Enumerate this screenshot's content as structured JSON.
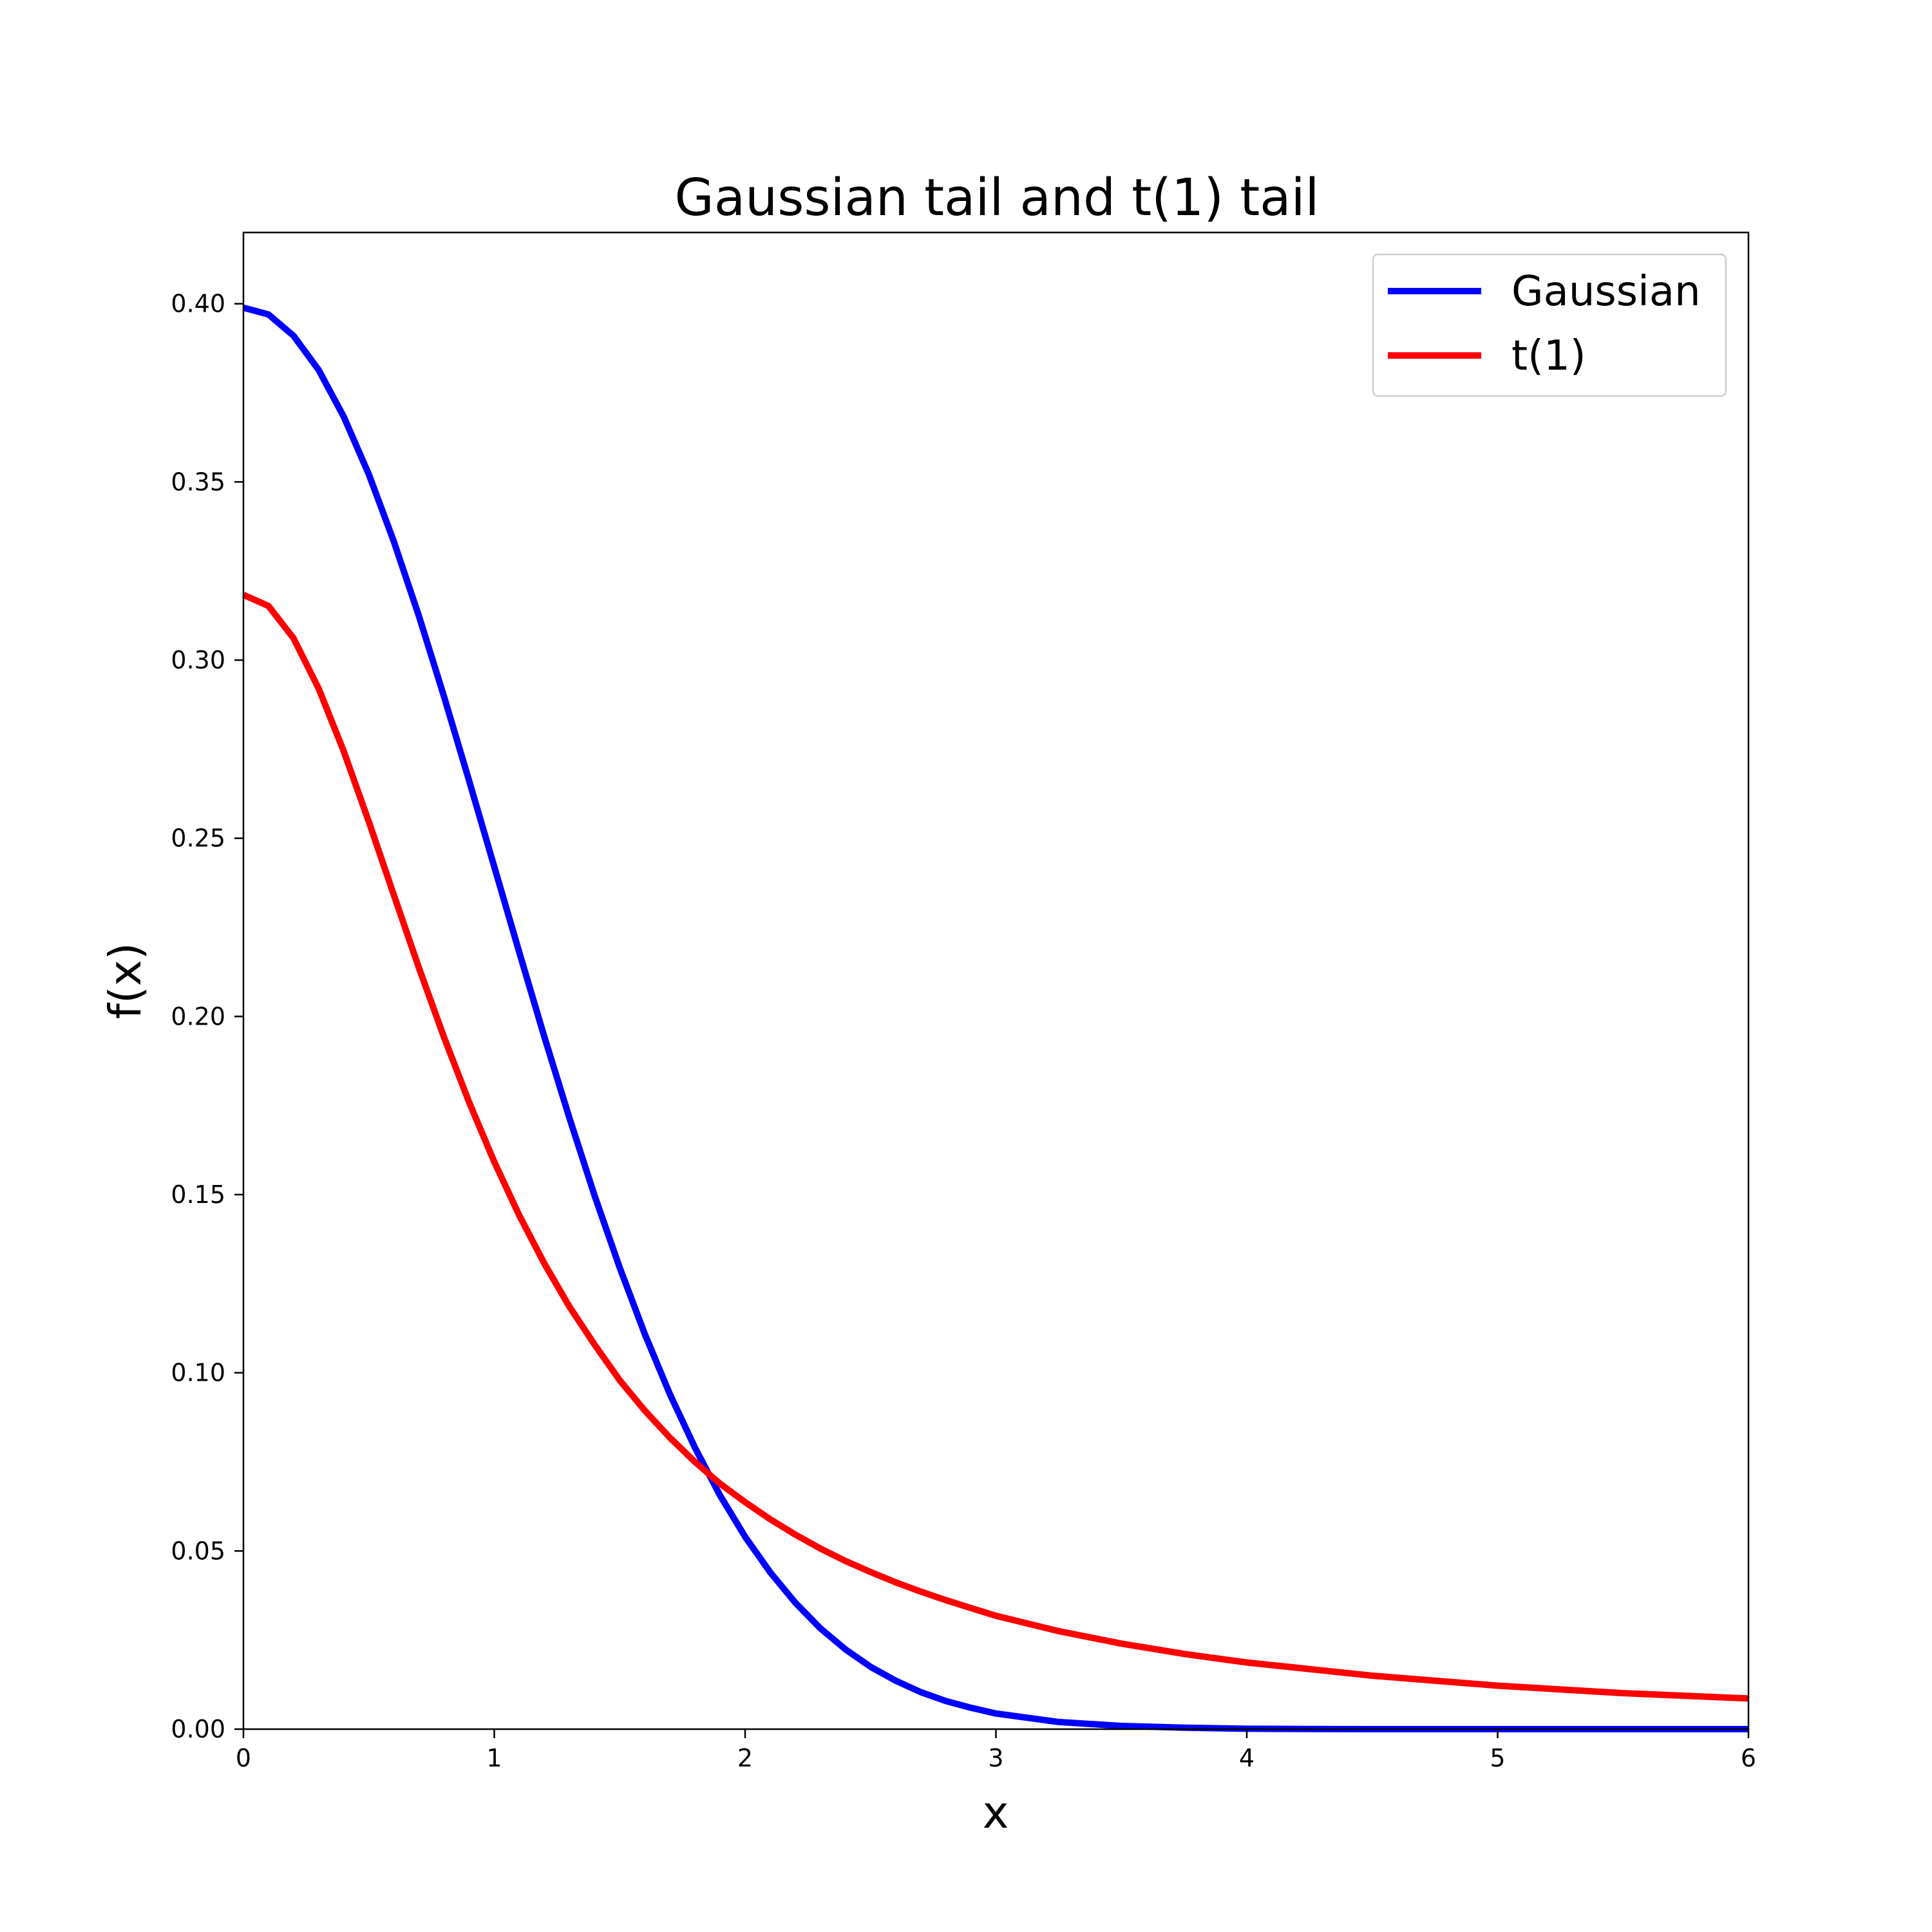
{
  "chart_data": {
    "type": "line",
    "title": "Gaussian tail and t(1) tail",
    "xlabel": "x",
    "ylabel": "f(x)",
    "xlim": [
      0,
      6
    ],
    "ylim": [
      0,
      0.42
    ],
    "x_ticks": [
      0,
      1,
      2,
      3,
      4,
      5,
      6
    ],
    "x_tick_labels": [
      "0",
      "1",
      "2",
      "3",
      "4",
      "5",
      "6"
    ],
    "y_ticks": [
      0,
      0.05,
      0.1,
      0.15,
      0.2,
      0.25,
      0.3,
      0.35,
      0.4
    ],
    "y_tick_labels": [
      "0.00",
      "0.05",
      "0.10",
      "0.15",
      "0.20",
      "0.25",
      "0.30",
      "0.35",
      "0.40"
    ],
    "grid": false,
    "legend_position": "top-right",
    "x": [
      0,
      0.1,
      0.2,
      0.3,
      0.4,
      0.5,
      0.6,
      0.7,
      0.8,
      0.9,
      1.0,
      1.1,
      1.2,
      1.3,
      1.4,
      1.5,
      1.6,
      1.7,
      1.8,
      1.9,
      2.0,
      2.1,
      2.2,
      2.3,
      2.4,
      2.5,
      2.6,
      2.7,
      2.8,
      2.9,
      3.0,
      3.25,
      3.5,
      3.75,
      4.0,
      4.5,
      5.0,
      5.5,
      6.0
    ],
    "series": [
      {
        "name": "Gaussian",
        "color": "#0000ff",
        "values": [
          0.3989,
          0.397,
          0.391,
          0.3814,
          0.3683,
          0.3521,
          0.3332,
          0.3123,
          0.2897,
          0.2661,
          0.242,
          0.2179,
          0.1942,
          0.1714,
          0.1497,
          0.1295,
          0.1109,
          0.094,
          0.079,
          0.0656,
          0.054,
          0.044,
          0.0355,
          0.0283,
          0.0224,
          0.0175,
          0.0136,
          0.0104,
          0.0079,
          0.006,
          0.0044,
          0.002,
          0.0009,
          0.0004,
          0.0001,
          0.0,
          0.0,
          0.0,
          0.0
        ]
      },
      {
        "name": "t(1)",
        "color": "#ff0000",
        "values": [
          0.3183,
          0.3152,
          0.3061,
          0.292,
          0.2744,
          0.2546,
          0.234,
          0.2136,
          0.1941,
          0.1759,
          0.1592,
          0.1441,
          0.1306,
          0.1185,
          0.1079,
          0.0979,
          0.0894,
          0.0818,
          0.075,
          0.0689,
          0.0637,
          0.0589,
          0.0546,
          0.0507,
          0.0472,
          0.0441,
          0.0412,
          0.0386,
          0.0362,
          0.034,
          0.0318,
          0.0275,
          0.024,
          0.0211,
          0.0187,
          0.015,
          0.0122,
          0.0101,
          0.0086
        ]
      }
    ]
  }
}
